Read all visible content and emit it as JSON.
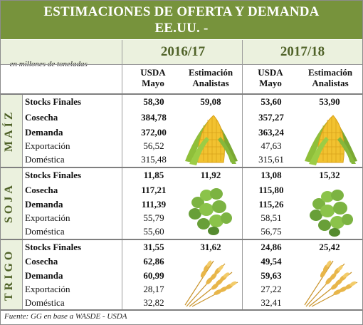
{
  "title": {
    "line1": "ESTIMACIONES DE OFERTA Y DEMANDA",
    "line2": "EE.UU. -"
  },
  "units": "-en millones de toneladas-",
  "years": [
    "2016/17",
    "2017/18"
  ],
  "column_headers": {
    "usda": [
      "USDA",
      "Mayo"
    ],
    "analistas": [
      "Estimación",
      "Analistas"
    ]
  },
  "crops": [
    {
      "name": "MAÍZ",
      "icon": "corn-icon",
      "rows": [
        {
          "label": "Stocks Finales",
          "bold": true,
          "usda_1617": "58,30",
          "analistas_1617": "59,08",
          "usda_1718": "53,60",
          "analistas_1718": "53,90"
        },
        {
          "label": "Cosecha",
          "bold": true,
          "usda_1617": "384,78",
          "usda_1718": "357,27"
        },
        {
          "label": "Demanda",
          "bold": true,
          "usda_1617": "372,00",
          "usda_1718": "363,24"
        },
        {
          "label": "Exportación",
          "bold": false,
          "usda_1617": "56,52",
          "usda_1718": "47,63"
        },
        {
          "label": "Doméstica",
          "bold": false,
          "usda_1617": "315,48",
          "usda_1718": "315,61"
        }
      ]
    },
    {
      "name": "SOJA",
      "icon": "soybean-icon",
      "rows": [
        {
          "label": "Stocks Finales",
          "bold": true,
          "usda_1617": "11,85",
          "analistas_1617": "11,92",
          "usda_1718": "13,08",
          "analistas_1718": "15,32"
        },
        {
          "label": "Cosecha",
          "bold": true,
          "usda_1617": "117,21",
          "usda_1718": "115,80"
        },
        {
          "label": "Demanda",
          "bold": true,
          "usda_1617": "111,39",
          "usda_1718": "115,26"
        },
        {
          "label": "Exportación",
          "bold": false,
          "usda_1617": "55,79",
          "usda_1718": "58,51"
        },
        {
          "label": "Doméstica",
          "bold": false,
          "usda_1617": "55,60",
          "usda_1718": "56,75"
        }
      ]
    },
    {
      "name": "TRIGO",
      "icon": "wheat-icon",
      "rows": [
        {
          "label": "Stocks Finales",
          "bold": true,
          "usda_1617": "31,55",
          "analistas_1617": "31,62",
          "usda_1718": "24,86",
          "analistas_1718": "25,42"
        },
        {
          "label": "Cosecha",
          "bold": true,
          "usda_1617": "62,86",
          "usda_1718": "49,54"
        },
        {
          "label": "Demanda",
          "bold": true,
          "usda_1617": "60,99",
          "usda_1718": "59,63"
        },
        {
          "label": "Exportación",
          "bold": false,
          "usda_1617": "28,17",
          "usda_1718": "27,22"
        },
        {
          "label": "Doméstica",
          "bold": false,
          "usda_1617": "32,82",
          "usda_1718": "32,41"
        }
      ]
    }
  ],
  "footer": "Fuente: GG en base a WASDE - USDA",
  "colors": {
    "title_bg": "#77933c",
    "band_bg": "#ebf1de",
    "accent_text": "#4f6228"
  }
}
